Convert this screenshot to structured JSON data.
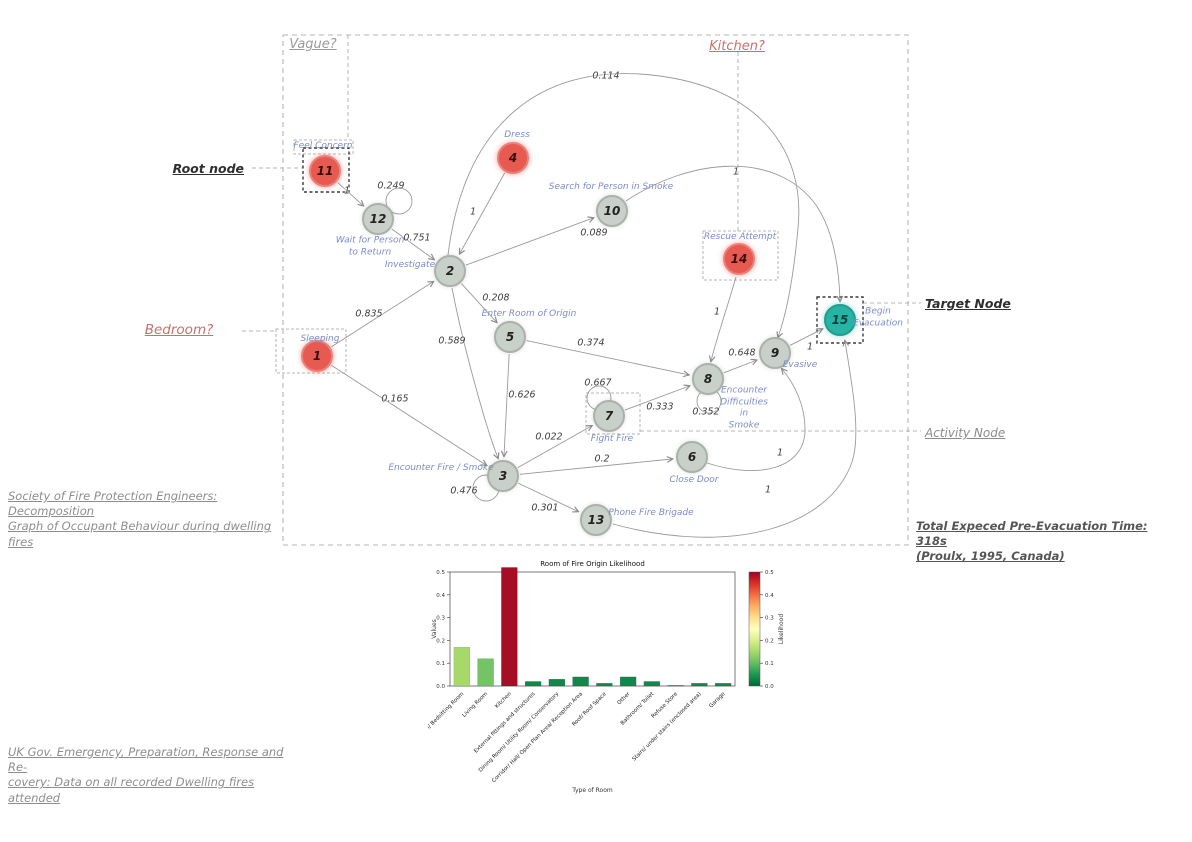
{
  "annotations": {
    "vague": "Vague?",
    "kitchen": "Kitchen?",
    "bedroom": "Bedroom?",
    "root": "Root node",
    "target": "Target Node",
    "activity": "Activity Node",
    "citation_graph": "Society of Fire Protection Engineers: Decomposition\nGraph of Occupant Behaviour during dwelling fires",
    "total_time": "Total Expeced Pre-Evacuation Time: 318s\n(Proulx, 1995, Canada)",
    "citation_chart": "UK Gov. Emergency, Preparation, Response and Re-\ncovery: Data on all recorded Dwelling fires attended"
  },
  "graph": {
    "colors": {
      "source": "#e65a51",
      "normal": "#c9cfc9",
      "target": "#28b4a4",
      "edge": "#9a9a9a"
    },
    "nodes": [
      {
        "id": "1",
        "activity": "Sleeping",
        "kind": "source"
      },
      {
        "id": "2",
        "activity": "Investigate",
        "kind": "normal"
      },
      {
        "id": "3",
        "activity": "Encounter Fire / Smoke",
        "kind": "normal"
      },
      {
        "id": "4",
        "activity": "Dress",
        "kind": "source"
      },
      {
        "id": "5",
        "activity": "Enter Room of Origin",
        "kind": "normal"
      },
      {
        "id": "6",
        "activity": "Close Door",
        "kind": "normal"
      },
      {
        "id": "7",
        "activity": "Fight Fire",
        "kind": "normal"
      },
      {
        "id": "8",
        "activity": "Encounter\nDifficulties\nin\nSmoke",
        "kind": "normal"
      },
      {
        "id": "9",
        "activity": "Evasive",
        "kind": "normal"
      },
      {
        "id": "10",
        "activity": "Search for Person in Smoke",
        "kind": "normal"
      },
      {
        "id": "11",
        "activity": "Feel Concern",
        "kind": "source"
      },
      {
        "id": "12",
        "activity": "Wait for Person\nto Return",
        "kind": "normal"
      },
      {
        "id": "13",
        "activity": "Phone Fire Brigade",
        "kind": "normal"
      },
      {
        "id": "14",
        "activity": "Rescue Attempt",
        "kind": "source"
      },
      {
        "id": "15",
        "activity": "Begin\nEvacuation",
        "kind": "target"
      }
    ],
    "edges": [
      {
        "from": "11",
        "to": "12",
        "p": "1"
      },
      {
        "from": "12",
        "to": "12",
        "p": "0.249"
      },
      {
        "from": "12",
        "to": "2",
        "p": "0.751"
      },
      {
        "from": "4",
        "to": "2",
        "p": "1"
      },
      {
        "from": "1",
        "to": "2",
        "p": "0.835"
      },
      {
        "from": "1",
        "to": "3",
        "p": "0.165"
      },
      {
        "from": "2",
        "to": "5",
        "p": "0.208"
      },
      {
        "from": "2",
        "to": "3",
        "p": "0.589"
      },
      {
        "from": "2",
        "to": "10",
        "p": "0.089"
      },
      {
        "from": "2",
        "to": "9",
        "p": "0.114"
      },
      {
        "from": "5",
        "to": "3",
        "p": "0.626"
      },
      {
        "from": "5",
        "to": "8",
        "p": "0.374"
      },
      {
        "from": "3",
        "to": "3",
        "p": "0.476"
      },
      {
        "from": "3",
        "to": "7",
        "p": "0.022"
      },
      {
        "from": "3",
        "to": "6",
        "p": "0.2"
      },
      {
        "from": "3",
        "to": "13",
        "p": "0.301"
      },
      {
        "from": "7",
        "to": "7",
        "p": "0.667"
      },
      {
        "from": "7",
        "to": "8",
        "p": "0.333"
      },
      {
        "from": "8",
        "to": "8",
        "p": "0.352"
      },
      {
        "from": "8",
        "to": "9",
        "p": "0.648"
      },
      {
        "from": "9",
        "to": "15",
        "p": "1"
      },
      {
        "from": "14",
        "to": "8",
        "p": "1"
      },
      {
        "from": "10",
        "to": "15",
        "p": "1"
      },
      {
        "from": "6",
        "to": "9",
        "p": "1"
      },
      {
        "from": "13",
        "to": "15",
        "p": "1"
      }
    ]
  },
  "chart_data": {
    "type": "bar",
    "title": "Room of Fire Origin Likelihood",
    "xlabel": "Type of Room",
    "ylabel": "Values",
    "ylim": [
      0,
      0.5
    ],
    "yticks": [
      0.0,
      0.1,
      0.2,
      0.3,
      0.4,
      0.5
    ],
    "categories": [
      "Bedroom/ Bedsitting Room",
      "Living Room",
      "Kitchen",
      "External fittings and structures",
      "Dining Room/ Utility Room/ Conservatory",
      "Corridor/ Hall/ Open Plan Area/ Reception Area",
      "Roof/ Roof Space",
      "Other",
      "Bathroom/ Toilet",
      "Refuse Store",
      "Stairs/ under stairs (enclosed area)",
      "Garage"
    ],
    "values": [
      0.17,
      0.12,
      0.52,
      0.02,
      0.03,
      0.04,
      0.012,
      0.04,
      0.02,
      0.003,
      0.012,
      0.012
    ],
    "bar_colors": [
      "#a6d96a",
      "#74c466",
      "#a50f26",
      "#13874b",
      "#13874b",
      "#13874b",
      "#13874b",
      "#13874b",
      "#13874b",
      "#13874b",
      "#13874b",
      "#13874b"
    ],
    "colorbar": {
      "label": "Likelihood",
      "min": 0.0,
      "max": 0.5,
      "ticks": [
        0.0,
        0.1,
        0.2,
        0.3,
        0.4,
        0.5
      ],
      "gradient": [
        "#a50026",
        "#d73027",
        "#f46d43",
        "#fdae61",
        "#fee08b",
        "#ffffbf",
        "#d9ef8b",
        "#a6d96a",
        "#66bd63",
        "#1a9850",
        "#006837"
      ]
    }
  }
}
